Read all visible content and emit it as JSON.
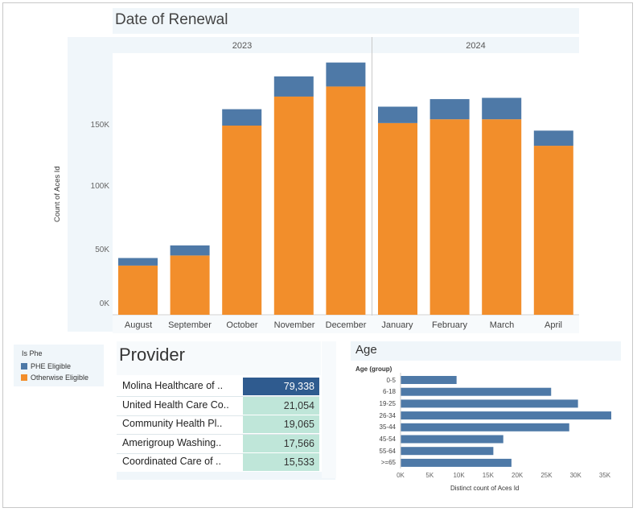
{
  "renewal": {
    "title": "Date of Renewal",
    "years": [
      "2023",
      "2024"
    ],
    "ylabel": "Count of Aces Id",
    "yticks": [
      "0K",
      "50K",
      "100K",
      "150K"
    ]
  },
  "legend": {
    "title": "Is Phe",
    "items": [
      {
        "label": "PHE Eligible",
        "color": "#4e79a7"
      },
      {
        "label": "Otherwise Eligible",
        "color": "#f28e2b"
      }
    ]
  },
  "provider": {
    "title": "Provider",
    "rows": [
      {
        "name": "Molina Healthcare of ..",
        "value": "79,338"
      },
      {
        "name": "United Health Care Co..",
        "value": "21,054"
      },
      {
        "name": "Community Health Pl..",
        "value": "19,065"
      },
      {
        "name": "Amerigroup Washing..",
        "value": "17,566"
      },
      {
        "name": "Coordinated Care of ..",
        "value": "15,533"
      }
    ]
  },
  "age": {
    "title": "Age",
    "sub": "Age (group)",
    "xlabel": "Distinct count of Aces Id",
    "xticks": [
      "0K",
      "5K",
      "10K",
      "15K",
      "20K",
      "25K",
      "30K",
      "35K"
    ]
  },
  "chart_data": [
    {
      "type": "bar",
      "stacked": true,
      "title": "Date of Renewal",
      "ylabel": "Count of Aces Id",
      "ylim": [
        0,
        200000
      ],
      "categories": [
        "August",
        "September",
        "October",
        "November",
        "December",
        "January",
        "February",
        "March",
        "April"
      ],
      "groups": [
        {
          "name": "2023",
          "categories": [
            "August",
            "September",
            "October",
            "November",
            "December"
          ]
        },
        {
          "name": "2024",
          "categories": [
            "January",
            "February",
            "March",
            "April"
          ]
        }
      ],
      "series": [
        {
          "name": "Otherwise Eligible",
          "color": "#f28e2b",
          "values": [
            39000,
            47000,
            150000,
            173000,
            181000,
            152000,
            155000,
            155000,
            134000
          ]
        },
        {
          "name": "PHE Eligible",
          "color": "#4e79a7",
          "values": [
            6000,
            8000,
            13000,
            16000,
            19000,
            13000,
            16000,
            17000,
            12000
          ]
        }
      ]
    },
    {
      "type": "table",
      "title": "Provider",
      "rows": [
        [
          "Molina Healthcare of ..",
          79338
        ],
        [
          "United Health Care Co..",
          21054
        ],
        [
          "Community Health Pl..",
          19065
        ],
        [
          "Amerigroup Washing..",
          17566
        ],
        [
          "Coordinated Care of ..",
          15533
        ]
      ]
    },
    {
      "type": "bar",
      "orientation": "horizontal",
      "title": "Age",
      "ylabel": "Age (group)",
      "xlabel": "Distinct count of Aces Id",
      "xlim": [
        0,
        37000
      ],
      "categories": [
        "0-5",
        "6-18",
        "19-25",
        "26-34",
        "35-44",
        "45-54",
        "55-64",
        ">=65"
      ],
      "values": [
        9600,
        25800,
        30400,
        36100,
        28900,
        17600,
        15900,
        19000
      ],
      "color": "#4e79a7"
    }
  ]
}
